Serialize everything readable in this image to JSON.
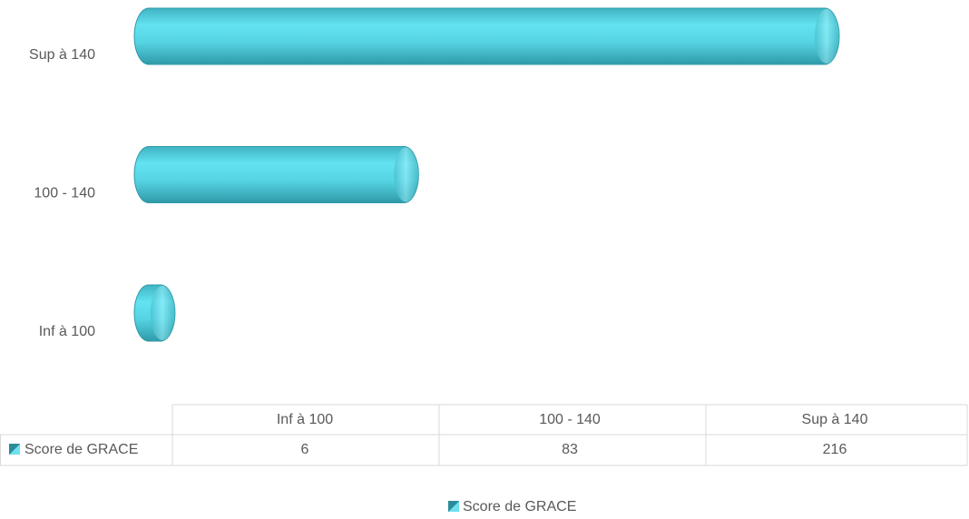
{
  "chart_data": {
    "type": "bar",
    "orientation": "horizontal",
    "categories": [
      "Inf à 100",
      "100 - 140",
      "Sup à 140"
    ],
    "series": [
      {
        "name": "Score de GRACE",
        "color": "#4fcfdf",
        "values": [
          6,
          83,
          216
        ]
      }
    ],
    "legend": "bottom",
    "data_table": true
  }
}
